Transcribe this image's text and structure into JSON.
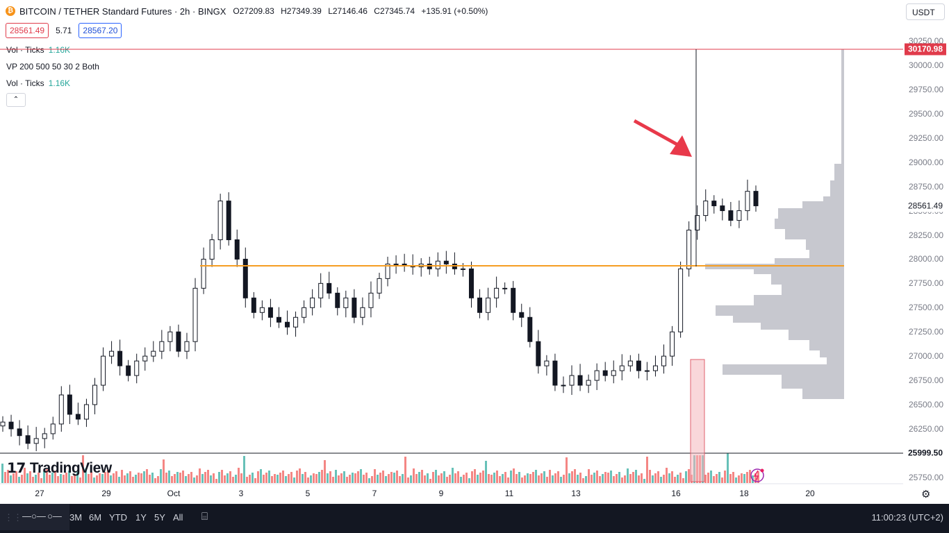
{
  "header": {
    "symbol": "BITCOIN / TETHER Standard Futures · 2h · BINGX",
    "open": "O27209.83",
    "high": "H27349.39",
    "low": "L27146.46",
    "close": "C27345.74",
    "change": "+135.91 (+0.50%)",
    "coin_glyph": "₿",
    "sell_price": "28561.49",
    "spread": "5.71",
    "buy_price": "28567.20",
    "currency": "USDT"
  },
  "legends": {
    "vol1_label": "Vol · Ticks",
    "vol1_value": "1.16K",
    "vp_label": "VP 200 500 50 30 2 Both",
    "vol2_label": "Vol · Ticks",
    "vol2_value": "1.16K",
    "collapse_glyph": "⌃"
  },
  "price_axis": {
    "ticks": [
      "30250.00",
      "30000.00",
      "29750.00",
      "29500.00",
      "29250.00",
      "29000.00",
      "28750.00",
      "28500.00",
      "28250.00",
      "28000.00",
      "27750.00",
      "27500.00",
      "27250.00",
      "27000.00",
      "26750.00",
      "26500.00",
      "26250.00",
      "25750.00"
    ],
    "high_line_label": "30170.98",
    "current_label": "28561.49",
    "low_line_label": "25999.50"
  },
  "time_axis": [
    "27",
    "29",
    "Oct",
    "3",
    "5",
    "7",
    "9",
    "11",
    "13",
    "16",
    "18",
    "20"
  ],
  "bottom_bar": {
    "ranges": [
      "3M",
      "6M",
      "YTD",
      "1Y",
      "5Y",
      "All"
    ],
    "clock": "11:00:23 (UTC+2)"
  },
  "logo_text": "TradingView",
  "colors": {
    "up": "#26a69a",
    "down": "#ef5350",
    "high_line": "#e03b4b",
    "level_line": "#f59d22",
    "arrow": "#e8394a",
    "profile": "#c7c8cf"
  },
  "chart_data": {
    "type": "candlestick",
    "timeframe": "2h",
    "highlighted_level": 27930,
    "high_line": 30170.98,
    "low_line": 25999.5,
    "last_price": 28561.49,
    "ylim": [
      25700,
      30300
    ],
    "candles_close": [
      26320,
      26250,
      26180,
      26100,
      26150,
      26200,
      26300,
      26600,
      26400,
      26350,
      26500,
      26700,
      27000,
      27050,
      26900,
      26800,
      26950,
      27000,
      27050,
      27150,
      27250,
      27050,
      27150,
      27700,
      28000,
      28200,
      28600,
      28200,
      28000,
      27600,
      27450,
      27500,
      27400,
      27350,
      27300,
      27400,
      27500,
      27600,
      27750,
      27650,
      27500,
      27600,
      27400,
      27500,
      27650,
      27800,
      27950,
      27950,
      27930,
      27920,
      27950,
      27900,
      27980,
      27950,
      27900,
      27900,
      27600,
      27450,
      27600,
      27700,
      27700,
      27450,
      27400,
      27150,
      26900,
      26950,
      26700,
      26700,
      26800,
      26700,
      26750,
      26850,
      26800,
      26850,
      26900,
      26950,
      26850,
      26850,
      26900,
      27000,
      27250,
      27900,
      28300,
      28450,
      28600,
      28550,
      28500,
      28400,
      28500,
      28700,
      28550
    ]
  }
}
